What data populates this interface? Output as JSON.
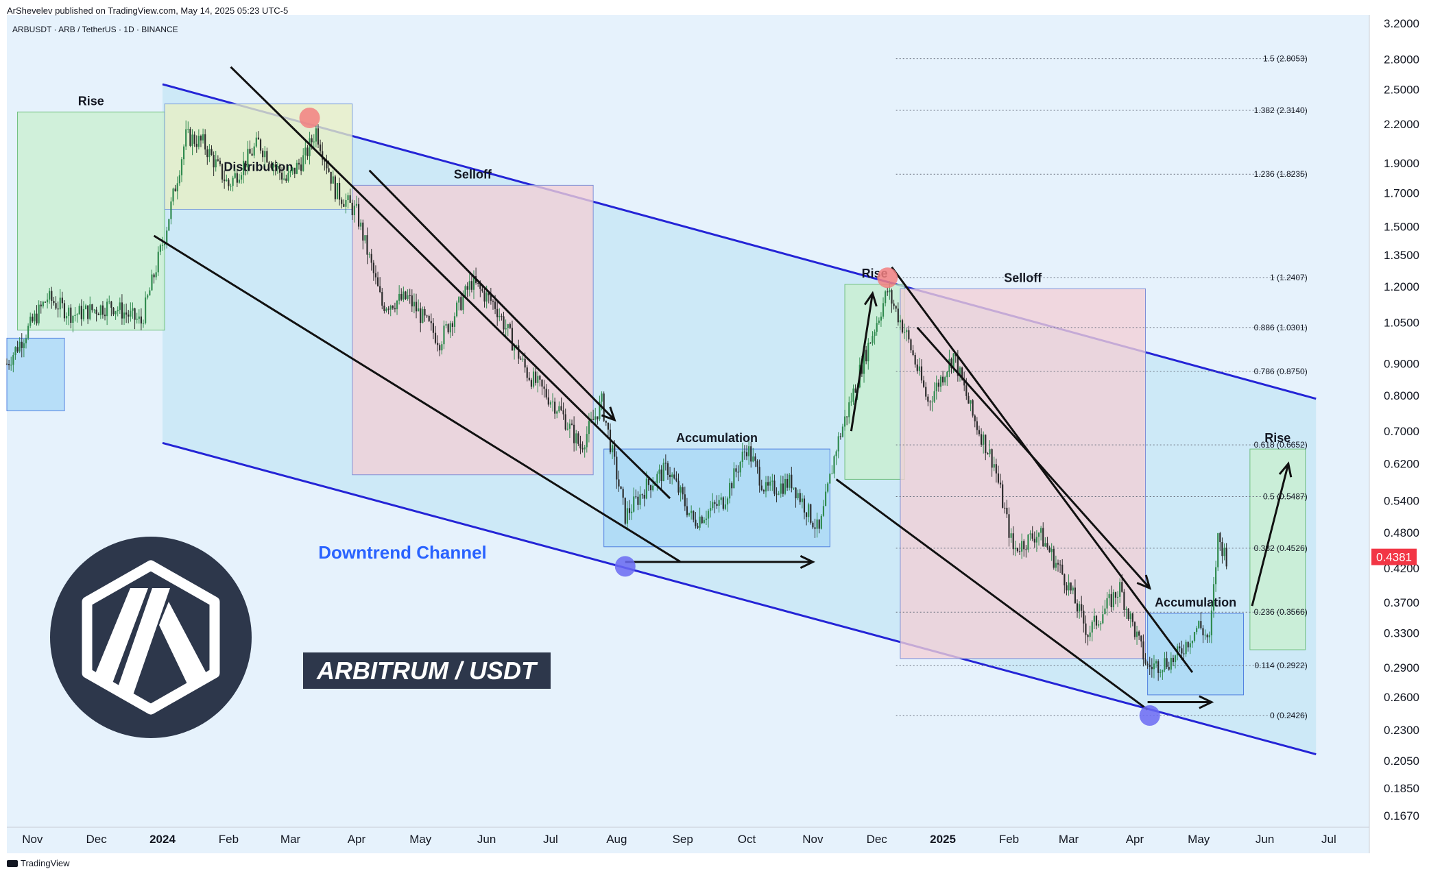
{
  "header": {
    "byline": "ArShevelev published on TradingView.com, May 14, 2025 05:23 UTC-5",
    "symbol": "ARBUSDT · ARB / TetherUS · 1D · BINANCE"
  },
  "footer": {
    "brand": "TradingView"
  },
  "colors": {
    "background": "#e6f2fc",
    "channel_line": "#2424d6",
    "channel_fill": "#c4e6f6",
    "up_candle": "#2f8a4e",
    "down_candle": "#2b2b2b",
    "rise_box": "#c9f0d0",
    "distribution_box": "#e8efc4",
    "selloff_box": "#f2cfd6",
    "accumulation_box": "#a9d8f6",
    "price_tag": "#f23645",
    "label_blue": "#2962ff",
    "logo_dark": "#2d374b"
  },
  "chart_data": {
    "type": "candlestick",
    "title": "ARBUSDT · ARB / TetherUS · 1D · BINANCE",
    "y_scale": "log",
    "ylim": [
      0.16,
      3.3
    ],
    "y_ticks": [
      "3.2000",
      "2.8000",
      "2.5000",
      "2.2000",
      "1.9000",
      "1.7000",
      "1.5000",
      "1.3500",
      "1.2000",
      "1.0500",
      "0.9000",
      "0.8000",
      "0.7000",
      "0.6200",
      "0.5400",
      "0.4800",
      "0.4200",
      "0.3700",
      "0.3300",
      "0.2900",
      "0.2600",
      "0.2300",
      "0.2050",
      "0.1850",
      "0.1670"
    ],
    "x_ticks": [
      "Nov",
      "Dec",
      "2024",
      "Feb",
      "Mar",
      "Apr",
      "May",
      "Jun",
      "Jul",
      "Aug",
      "Sep",
      "Oct",
      "Nov",
      "Dec",
      "2025",
      "Feb",
      "Mar",
      "Apr",
      "May",
      "Jun",
      "Jul"
    ],
    "x_range": [
      "2023-10-20",
      "2025-07-20"
    ],
    "last_price": "0.4381",
    "price_path": [
      [
        "2023-10-20",
        0.9
      ],
      [
        "2023-11-08",
        1.15
      ],
      [
        "2023-11-20",
        1.08
      ],
      [
        "2023-12-08",
        1.12
      ],
      [
        "2023-12-22",
        1.05
      ],
      [
        "2024-01-02",
        1.45
      ],
      [
        "2024-01-12",
        2.1
      ],
      [
        "2024-01-20",
        2.05
      ],
      [
        "2024-02-01",
        1.75
      ],
      [
        "2024-02-15",
        2.05
      ],
      [
        "2024-02-28",
        1.78
      ],
      [
        "2024-03-08",
        1.95
      ],
      [
        "2024-03-13",
        2.15
      ],
      [
        "2024-03-22",
        1.72
      ],
      [
        "2024-04-01",
        1.58
      ],
      [
        "2024-04-13",
        1.12
      ],
      [
        "2024-04-25",
        1.15
      ],
      [
        "2024-05-10",
        0.98
      ],
      [
        "2024-05-25",
        1.22
      ],
      [
        "2024-06-05",
        1.12
      ],
      [
        "2024-06-20",
        0.87
      ],
      [
        "2024-07-05",
        0.76
      ],
      [
        "2024-07-15",
        0.66
      ],
      [
        "2024-07-25",
        0.78
      ],
      [
        "2024-08-05",
        0.51
      ],
      [
        "2024-08-15",
        0.57
      ],
      [
        "2024-08-25",
        0.61
      ],
      [
        "2024-09-06",
        0.5
      ],
      [
        "2024-09-20",
        0.54
      ],
      [
        "2024-10-01",
        0.66
      ],
      [
        "2024-10-10",
        0.56
      ],
      [
        "2024-10-22",
        0.58
      ],
      [
        "2024-11-04",
        0.48
      ],
      [
        "2024-11-12",
        0.66
      ],
      [
        "2024-11-25",
        0.92
      ],
      [
        "2024-12-06",
        1.18
      ],
      [
        "2024-12-15",
        1.0
      ],
      [
        "2024-12-25",
        0.78
      ],
      [
        "2025-01-06",
        0.93
      ],
      [
        "2025-01-15",
        0.74
      ],
      [
        "2025-01-25",
        0.62
      ],
      [
        "2025-02-03",
        0.45
      ],
      [
        "2025-02-15",
        0.48
      ],
      [
        "2025-02-28",
        0.4
      ],
      [
        "2025-03-10",
        0.33
      ],
      [
        "2025-03-25",
        0.39
      ],
      [
        "2025-04-07",
        0.29
      ],
      [
        "2025-04-20",
        0.3
      ],
      [
        "2025-05-01",
        0.34
      ],
      [
        "2025-05-06",
        0.32
      ],
      [
        "2025-05-10",
        0.47
      ],
      [
        "2025-05-14",
        0.4381
      ]
    ],
    "fib_levels": [
      {
        "label": "1.5 (2.8053)",
        "value": 2.8053
      },
      {
        "label": "1.382 (2.3140)",
        "value": 2.314
      },
      {
        "label": "1.236 (1.8235)",
        "value": 1.8235
      },
      {
        "label": "1 (1.2407)",
        "value": 1.2407
      },
      {
        "label": "0.886 (1.0301)",
        "value": 1.0301
      },
      {
        "label": "0.786 (0.8750)",
        "value": 0.875
      },
      {
        "label": "0.618 (0.6652)",
        "value": 0.6652
      },
      {
        "label": "0.5 (0.5487)",
        "value": 0.5487
      },
      {
        "label": "0.382 (0.4526)",
        "value": 0.4526
      },
      {
        "label": "0.236 (0.3566)",
        "value": 0.3566
      },
      {
        "label": "0.114 (0.2922)",
        "value": 0.2922
      },
      {
        "label": "0 (0.2426)",
        "value": 0.2426
      }
    ],
    "channel": {
      "upper": [
        [
          "2024-01-01",
          2.55
        ],
        [
          "2025-06-25",
          0.79
        ]
      ],
      "lower": [
        [
          "2024-01-01",
          0.67
        ],
        [
          "2025-06-25",
          0.21
        ]
      ]
    },
    "zones": [
      {
        "kind": "accumulation",
        "label": "",
        "x": [
          "2023-10-20",
          "2023-11-16"
        ],
        "y": [
          0.755,
          0.99
        ]
      },
      {
        "kind": "rise",
        "label": "Rise",
        "x": [
          "2023-10-25",
          "2024-01-02"
        ],
        "y": [
          1.02,
          2.3
        ]
      },
      {
        "kind": "distribution",
        "label": "Distribution",
        "x": [
          "2024-01-02",
          "2024-03-30"
        ],
        "y": [
          1.6,
          2.37
        ]
      },
      {
        "kind": "selloff",
        "label": "Selloff",
        "x": [
          "2024-03-30",
          "2024-07-21"
        ],
        "y": [
          0.595,
          1.75
        ]
      },
      {
        "kind": "accumulation",
        "label": "Accumulation",
        "x": [
          "2024-07-26",
          "2024-11-09"
        ],
        "y": [
          0.455,
          0.655
        ]
      },
      {
        "kind": "rise",
        "label": "Rise",
        "x": [
          "2024-11-16",
          "2024-12-14"
        ],
        "y": [
          0.585,
          1.21
        ]
      },
      {
        "kind": "selloff",
        "label": "Selloff",
        "x": [
          "2024-12-12",
          "2025-04-06"
        ],
        "y": [
          0.3,
          1.19
        ]
      },
      {
        "kind": "accumulation",
        "label": "Accumulation",
        "x": [
          "2025-04-07",
          "2025-05-22"
        ],
        "y": [
          0.262,
          0.355
        ]
      },
      {
        "kind": "rise",
        "label": "Rise",
        "x": [
          "2025-05-25",
          "2025-06-20"
        ],
        "y": [
          0.31,
          0.655
        ]
      }
    ],
    "trendlines": [
      {
        "from": [
          "2024-02-02",
          2.72
        ],
        "to": [
          "2024-08-26",
          0.545
        ]
      },
      {
        "from": [
          "2023-12-28",
          1.45
        ],
        "to": [
          "2024-08-31",
          0.43
        ]
      },
      {
        "from": [
          "2024-12-08",
          1.29
        ],
        "to": [
          "2025-04-28",
          0.285
        ]
      },
      {
        "from": [
          "2024-11-12",
          0.585
        ],
        "to": [
          "2025-04-07",
          0.248
        ]
      }
    ],
    "arrows": [
      {
        "from": [
          "2024-04-07",
          1.85
        ],
        "to": [
          "2024-07-31",
          0.73
        ]
      },
      {
        "from": [
          "2024-08-05",
          0.43
        ],
        "to": [
          "2024-11-01",
          0.43
        ]
      },
      {
        "from": [
          "2024-11-19",
          0.7
        ],
        "to": [
          "2024-11-29",
          1.17
        ]
      },
      {
        "from": [
          "2024-12-20",
          1.03
        ],
        "to": [
          "2025-04-08",
          0.39
        ]
      },
      {
        "from": [
          "2025-04-07",
          0.255
        ],
        "to": [
          "2025-05-07",
          0.255
        ]
      },
      {
        "from": [
          "2025-05-26",
          0.365
        ],
        "to": [
          "2025-06-12",
          0.62
        ]
      }
    ],
    "markers": [
      {
        "kind": "top",
        "at": [
          "2024-03-10",
          2.25
        ]
      },
      {
        "kind": "top",
        "at": [
          "2024-12-06",
          1.24
        ]
      },
      {
        "kind": "bottom",
        "at": [
          "2024-08-05",
          0.423
        ]
      },
      {
        "kind": "bottom",
        "at": [
          "2025-04-08",
          0.2426
        ]
      }
    ]
  },
  "annotations": {
    "downtrend_channel": "Downtrend Channel",
    "pair_label": "ARBITRUM / USDT"
  }
}
